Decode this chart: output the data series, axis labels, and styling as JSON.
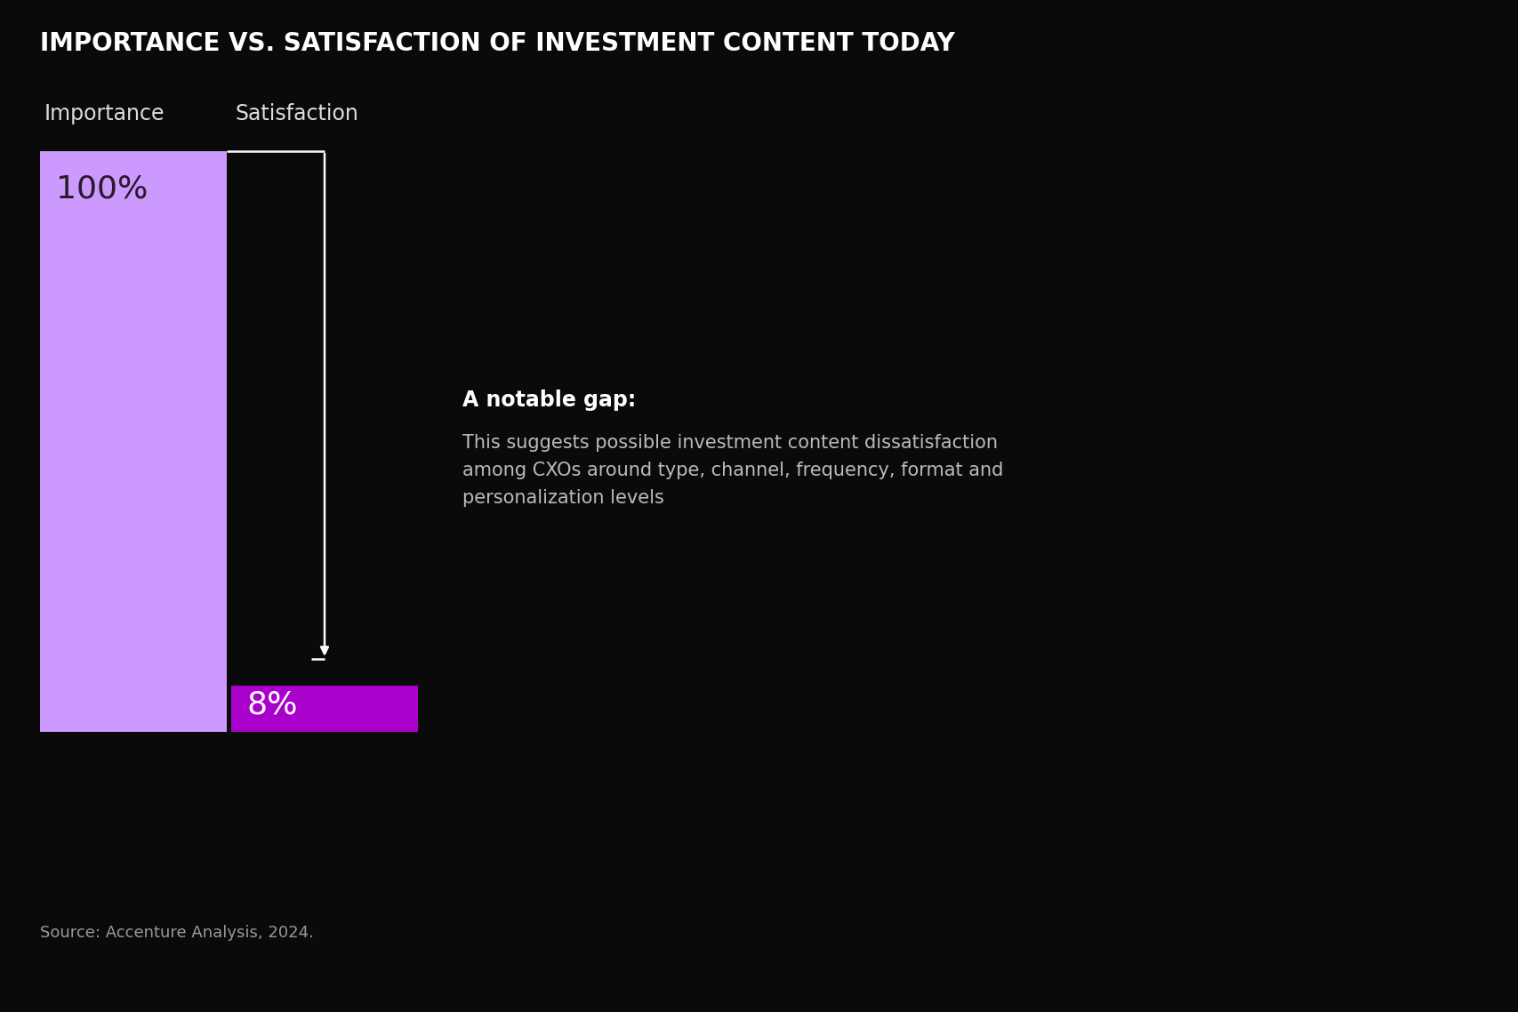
{
  "title": "IMPORTANCE VS. SATISFACTION OF INVESTMENT CONTENT TODAY",
  "background_color": "#0a0a0a",
  "bar1_label": "Importance",
  "bar2_label": "Satisfaction",
  "bar1_value": 100,
  "bar2_value": 8,
  "bar1_color": "#cc99ff",
  "bar2_color": "#aa00cc",
  "bar1_text": "100%",
  "bar2_text": "8%",
  "text_color": "#ffffff",
  "label_color": "#dddddd",
  "annotation_bold": "A notable gap:",
  "annotation_body": "This suggests possible investment content dissatisfaction\namong CXOs around type, channel, frequency, format and\npersonalization levels",
  "source_text": "Source: Accenture Analysis, 2024.",
  "title_fontsize": 20,
  "label_fontsize": 17,
  "value_fontsize": 26,
  "annotation_bold_fontsize": 17,
  "annotation_body_fontsize": 15,
  "source_fontsize": 13
}
